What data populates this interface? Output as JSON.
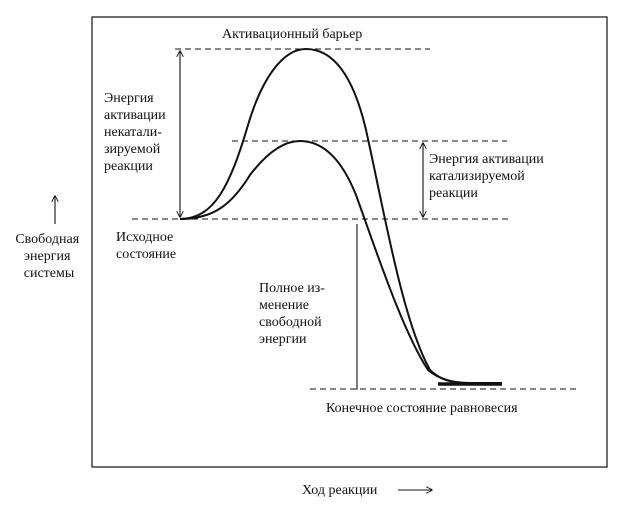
{
  "labels": {
    "activation_barrier": "Активационный барьер",
    "uncatalyzed_energy": [
      "Энергия",
      "активации",
      "некатали-",
      "зируемой",
      "реакции"
    ],
    "catalyzed_energy": [
      "Энергия активации",
      "катализируемой",
      "реакции"
    ],
    "initial_state": [
      "Исходное",
      "состояние"
    ],
    "free_energy_change": [
      "Полное из-",
      "менение",
      "свободной",
      "энергии"
    ],
    "final_state": "Конечное состояние равновесия"
  },
  "axes": {
    "y_label": [
      "Свободная",
      "энергия",
      "системы"
    ],
    "x_label": "Ход реакции"
  },
  "colors": {
    "ink": "#111111",
    "background": "#ffffff"
  }
}
